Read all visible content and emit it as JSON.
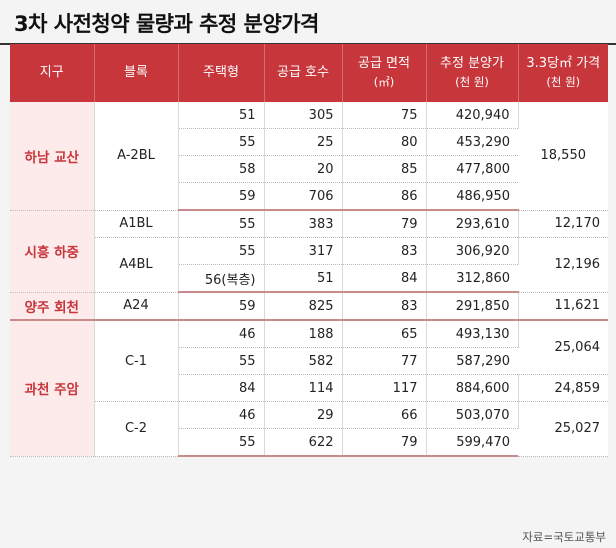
{
  "title": "3차 사전청약 물량과 추정 분양가격",
  "headers": {
    "region": "지구",
    "block": "블록",
    "type": "주택형",
    "units": "공급 호수",
    "area": "공급 면적",
    "area_unit": "(㎡)",
    "price": "추정 분양가",
    "price_unit": "(천 원)",
    "pyeong": "3.3당㎡ 가격",
    "pyeong_unit": "(천 원)"
  },
  "regions": {
    "hanam": "하남 교산",
    "siheung": "시흥 하중",
    "yangju": "양주 회천",
    "gwacheon": "과천 주암"
  },
  "blocks": {
    "a2bl": "A-2BL",
    "a1bl": "A1BL",
    "a4bl": "A4BL",
    "a24": "A24",
    "c1": "C-1",
    "c2": "C-2"
  },
  "rows": [
    {
      "type": "51",
      "units": "305",
      "area": "75",
      "price": "420,940"
    },
    {
      "type": "55",
      "units": "25",
      "area": "80",
      "price": "453,290"
    },
    {
      "type": "58",
      "units": "20",
      "area": "85",
      "price": "477,800"
    },
    {
      "type": "59",
      "units": "706",
      "area": "86",
      "price": "486,950"
    },
    {
      "type": "55",
      "units": "383",
      "area": "79",
      "price": "293,610"
    },
    {
      "type": "55",
      "units": "317",
      "area": "83",
      "price": "306,920"
    },
    {
      "type": "56(복층)",
      "units": "51",
      "area": "84",
      "price": "312,860"
    },
    {
      "type": "59",
      "units": "825",
      "area": "83",
      "price": "291,850"
    },
    {
      "type": "46",
      "units": "188",
      "area": "65",
      "price": "493,130"
    },
    {
      "type": "55",
      "units": "582",
      "area": "77",
      "price": "587,290"
    },
    {
      "type": "84",
      "units": "114",
      "area": "117",
      "price": "884,600"
    },
    {
      "type": "46",
      "units": "29",
      "area": "66",
      "price": "503,070"
    },
    {
      "type": "55",
      "units": "622",
      "area": "79",
      "price": "599,470"
    }
  ],
  "pyeong_prices": [
    "18,550",
    "12,170",
    "12,196",
    "11,621",
    "25,064",
    "24,859",
    "25,027"
  ],
  "source": "자료=국토교통부"
}
